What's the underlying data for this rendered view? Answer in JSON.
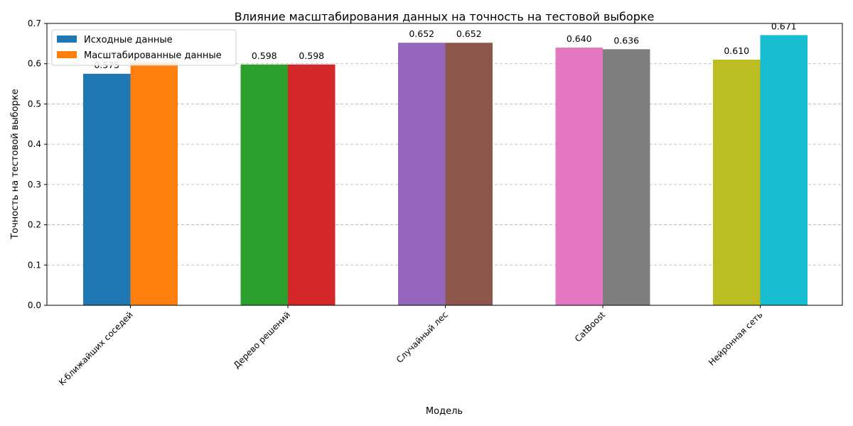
{
  "chart_data": {
    "type": "bar",
    "title": "Влияние масштабирования данных на точность на тестовой выборке",
    "xlabel": "Модель",
    "ylabel": "Точность на тестовой выборке",
    "categories": [
      "K-ближайших соседей",
      "Дерево решений",
      "Случайный лес",
      "CatBoost",
      "Нейронная сеть"
    ],
    "series": [
      {
        "name": "Исходные данные",
        "values": [
          0.575,
          0.598,
          0.652,
          0.64,
          0.61
        ],
        "labels": [
          "0.575",
          "0.598",
          "0.652",
          "0.640",
          "0.610"
        ],
        "colors": [
          "#1f77b4",
          "#2ca02c",
          "#9467bd",
          "#e377c2",
          "#bcbd22"
        ],
        "legend_color": "#1f77b4"
      },
      {
        "name": "Масштабированные данные",
        "values": [
          0.604,
          0.598,
          0.652,
          0.636,
          0.671
        ],
        "labels": [
          "",
          "0.598",
          "0.652",
          "0.636",
          "0.671"
        ],
        "colors": [
          "#ff7f0e",
          "#d62728",
          "#8c564b",
          "#7f7f7f",
          "#17becf"
        ],
        "legend_color": "#ff7f0e"
      }
    ],
    "ylim": [
      0,
      0.7
    ],
    "yticks": [
      "0.0",
      "0.1",
      "0.2",
      "0.3",
      "0.4",
      "0.5",
      "0.6",
      "0.7"
    ],
    "grid": "y-dashed",
    "legend_position": "top-left"
  }
}
